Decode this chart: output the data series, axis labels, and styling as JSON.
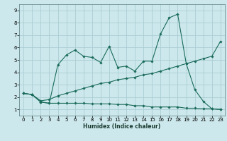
{
  "title": "",
  "xlabel": "Humidex (Indice chaleur)",
  "ylabel": "",
  "bg_color": "#cce8ec",
  "grid_color": "#aacdd4",
  "line_color": "#1a6b5a",
  "xlim": [
    -0.5,
    23.5
  ],
  "ylim": [
    0.5,
    9.5
  ],
  "xticks": [
    0,
    1,
    2,
    3,
    4,
    5,
    6,
    7,
    8,
    9,
    10,
    11,
    12,
    13,
    14,
    15,
    16,
    17,
    18,
    19,
    20,
    21,
    22,
    23
  ],
  "yticks": [
    1,
    2,
    3,
    4,
    5,
    6,
    7,
    8,
    9
  ],
  "line1_x": [
    0,
    1,
    2,
    3,
    4,
    5,
    6,
    7,
    8,
    9,
    10,
    11,
    12,
    13,
    14,
    15,
    16,
    17,
    18,
    19,
    20,
    21,
    22,
    23
  ],
  "line1_y": [
    2.3,
    2.2,
    1.6,
    1.5,
    4.6,
    5.4,
    5.8,
    5.3,
    5.2,
    4.8,
    6.1,
    4.4,
    4.5,
    4.1,
    4.9,
    4.9,
    7.1,
    8.4,
    8.7,
    4.7,
    2.6,
    1.65,
    1.05,
    1.0
  ],
  "line2_x": [
    0,
    1,
    2,
    3,
    4,
    5,
    6,
    7,
    8,
    9,
    10,
    11,
    12,
    13,
    14,
    15,
    16,
    17,
    18,
    19,
    20,
    21,
    22,
    23
  ],
  "line2_y": [
    2.3,
    2.2,
    1.7,
    1.8,
    2.1,
    2.3,
    2.5,
    2.7,
    2.9,
    3.1,
    3.2,
    3.4,
    3.5,
    3.6,
    3.8,
    3.9,
    4.1,
    4.3,
    4.5,
    4.7,
    4.9,
    5.1,
    5.3,
    6.5
  ],
  "line3_x": [
    0,
    1,
    2,
    3,
    4,
    5,
    6,
    7,
    8,
    9,
    10,
    11,
    12,
    13,
    14,
    15,
    16,
    17,
    18,
    19,
    20,
    21,
    22,
    23
  ],
  "line3_y": [
    2.3,
    2.2,
    1.6,
    1.5,
    1.5,
    1.5,
    1.5,
    1.5,
    1.45,
    1.45,
    1.45,
    1.4,
    1.4,
    1.3,
    1.3,
    1.2,
    1.2,
    1.2,
    1.2,
    1.1,
    1.1,
    1.05,
    1.05,
    1.0
  ],
  "xlabel_fontsize": 5.5,
  "tick_fontsize": 5.0,
  "linewidth": 0.8,
  "markersize": 1.8
}
